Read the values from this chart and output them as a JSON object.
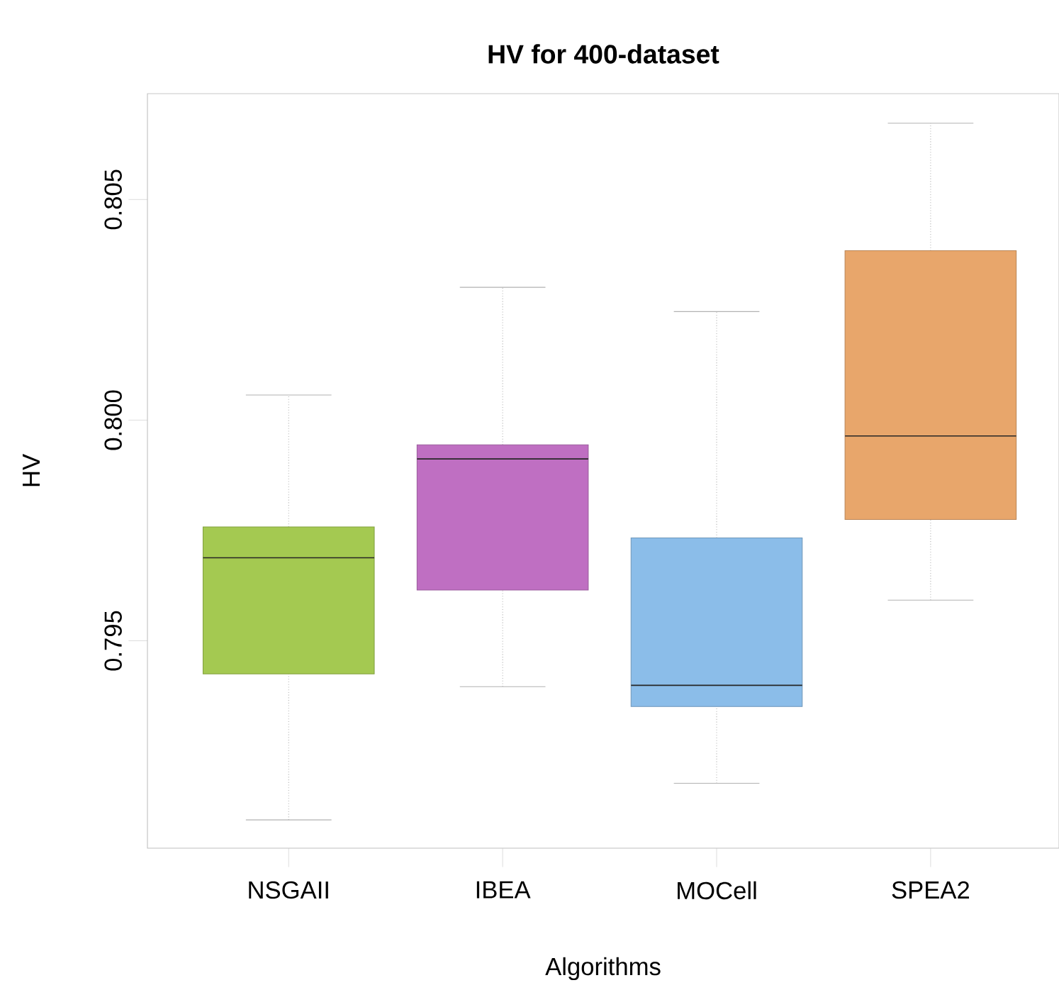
{
  "chart_data": {
    "type": "box",
    "title": "HV for 400-dataset",
    "xlabel": "Algorithms",
    "ylabel": "HV",
    "categories": [
      "NSGAII",
      "IBEA",
      "MOCell",
      "SPEA2"
    ],
    "colors": [
      "#a4c951",
      "#bf6fc2",
      "#8bbde9",
      "#e8a66b"
    ],
    "boxes": [
      {
        "low": 0.79094,
        "q1": 0.79425,
        "median": 0.79688,
        "q3": 0.79758,
        "high": 0.80057
      },
      {
        "low": 0.79396,
        "q1": 0.79615,
        "median": 0.79912,
        "q3": 0.79944,
        "high": 0.80301
      },
      {
        "low": 0.79177,
        "q1": 0.79351,
        "median": 0.79399,
        "q3": 0.79733,
        "high": 0.80246
      },
      {
        "low": 0.79592,
        "q1": 0.79775,
        "median": 0.79964,
        "q3": 0.80384,
        "high": 0.80673
      }
    ],
    "ylim": [
      0.7903,
      0.8074
    ],
    "yticks": [
      {
        "value": 0.795,
        "label": "0.795"
      },
      {
        "value": 0.8,
        "label": "0.800"
      },
      {
        "value": 0.805,
        "label": "0.805"
      }
    ]
  }
}
